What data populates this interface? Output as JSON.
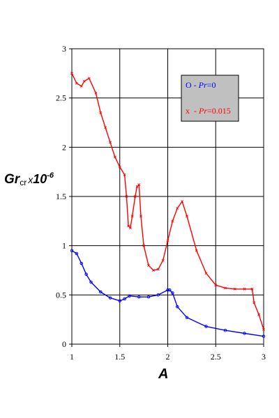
{
  "chart_data": {
    "type": "line",
    "x_label": "A",
    "y_label": {
      "main": "Gr",
      "sub": "cr",
      "mult": "x",
      "base": "10",
      "exp": "-6"
    },
    "xlim": [
      1,
      3
    ],
    "ylim": [
      0,
      3
    ],
    "x_ticks": [
      "1",
      "1.5",
      "2",
      "2.5",
      "3"
    ],
    "y_ticks": [
      "0",
      "0.5",
      "1",
      "1.5",
      "2",
      "2.5",
      "3"
    ],
    "grid": true,
    "legend_position": "top-right",
    "series": [
      {
        "marker": "circle",
        "color": "#0000ff",
        "legend": {
          "symbol": "O",
          "prefix": " - ",
          "var": "Pr",
          "eq": "=0"
        },
        "x": [
          1.0,
          1.05,
          1.1,
          1.15,
          1.2,
          1.3,
          1.4,
          1.5,
          1.55,
          1.6,
          1.7,
          1.8,
          1.9,
          2.0,
          2.02,
          2.05,
          2.1,
          2.2,
          2.4,
          2.6,
          2.8,
          3.0
        ],
        "y": [
          0.95,
          0.92,
          0.82,
          0.71,
          0.63,
          0.53,
          0.47,
          0.44,
          0.46,
          0.49,
          0.48,
          0.48,
          0.5,
          0.55,
          0.55,
          0.52,
          0.38,
          0.27,
          0.18,
          0.14,
          0.11,
          0.08
        ]
      },
      {
        "marker": "cross",
        "color": "#ff0000",
        "legend": {
          "symbol": "x",
          "prefix": "  - ",
          "var": "Pr",
          "eq": "=0.015"
        },
        "x": [
          1.0,
          1.05,
          1.1,
          1.13,
          1.18,
          1.25,
          1.3,
          1.35,
          1.4,
          1.45,
          1.5,
          1.55,
          1.57,
          1.59,
          1.61,
          1.63,
          1.66,
          1.68,
          1.7,
          1.72,
          1.75,
          1.8,
          1.85,
          1.9,
          1.95,
          2.0,
          2.05,
          2.1,
          2.15,
          2.2,
          2.3,
          2.4,
          2.5,
          2.6,
          2.7,
          2.8,
          2.88,
          2.9,
          2.95,
          3.0
        ],
        "y": [
          2.75,
          2.65,
          2.62,
          2.67,
          2.7,
          2.55,
          2.35,
          2.2,
          2.05,
          1.9,
          1.8,
          1.72,
          1.5,
          1.2,
          1.18,
          1.3,
          1.5,
          1.6,
          1.62,
          1.3,
          1.0,
          0.8,
          0.75,
          0.76,
          0.85,
          1.05,
          1.25,
          1.38,
          1.45,
          1.3,
          0.95,
          0.72,
          0.6,
          0.57,
          0.56,
          0.56,
          0.56,
          0.42,
          0.3,
          0.15
        ]
      }
    ]
  }
}
